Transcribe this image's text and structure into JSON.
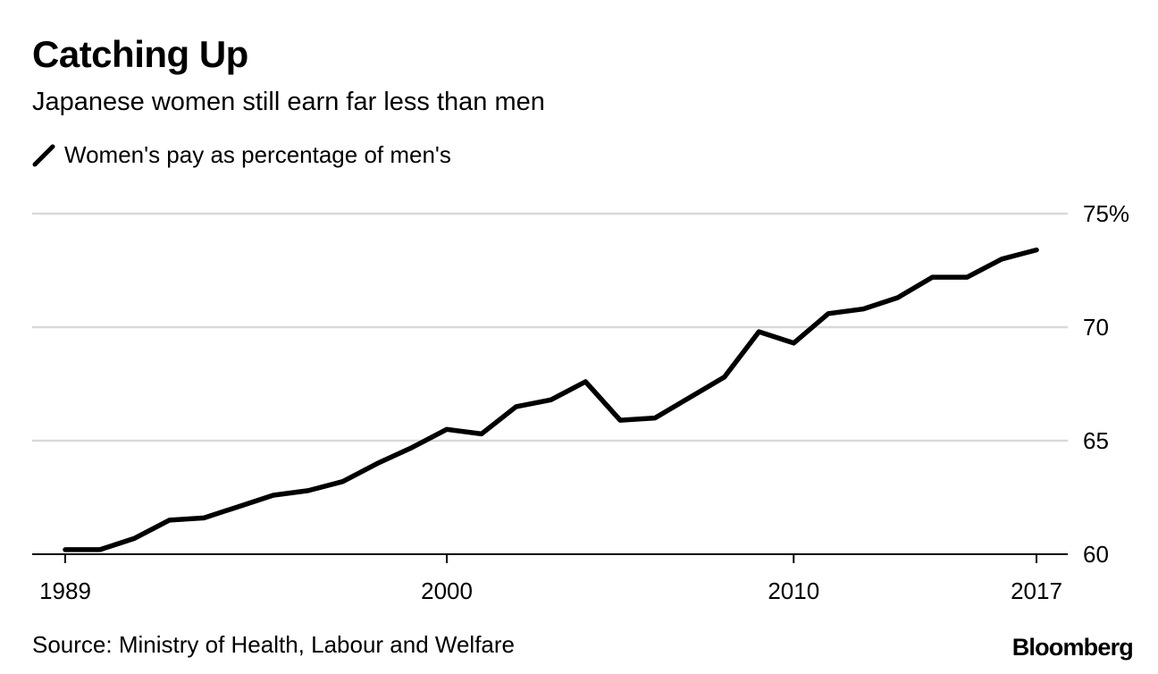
{
  "header": {
    "title": "Catching Up",
    "subtitle": "Japanese women still earn far less than men"
  },
  "legend": {
    "label": "Women's pay as percentage of men's"
  },
  "footer": {
    "source": "Source: Ministry of Health, Labour and Welfare",
    "logo": "Bloomberg"
  },
  "chart_data": {
    "type": "line",
    "series": [
      {
        "name": "Women's pay as percentage of men's",
        "color": "#000000",
        "x": [
          1989,
          1990,
          1991,
          1992,
          1993,
          1994,
          1995,
          1996,
          1997,
          1998,
          1999,
          2000,
          2001,
          2002,
          2003,
          2004,
          2005,
          2006,
          2007,
          2008,
          2009,
          2010,
          2011,
          2012,
          2013,
          2014,
          2015,
          2016,
          2017
        ],
        "y": [
          60.2,
          60.2,
          60.7,
          61.5,
          61.6,
          62.1,
          62.6,
          62.8,
          63.2,
          64.0,
          64.7,
          65.5,
          65.3,
          66.5,
          66.8,
          67.6,
          65.9,
          66.0,
          66.9,
          67.8,
          69.8,
          69.3,
          70.6,
          70.8,
          71.3,
          72.2,
          72.2,
          73.0,
          73.4
        ]
      }
    ],
    "ylim": [
      60,
      75
    ],
    "xlim": [
      1989,
      2017
    ],
    "y_ticks": [
      {
        "value": 60,
        "label": "60"
      },
      {
        "value": 65,
        "label": "65"
      },
      {
        "value": 70,
        "label": "70"
      },
      {
        "value": 75,
        "label": "75%"
      }
    ],
    "x_ticks": [
      {
        "value": 1989,
        "label": "1989"
      },
      {
        "value": 2000,
        "label": "2000"
      },
      {
        "value": 2010,
        "label": "2010"
      },
      {
        "value": 2017,
        "label": "2017"
      }
    ],
    "grid": true,
    "y_axis_position": "right",
    "gridline_color": "#d9d9d9"
  }
}
